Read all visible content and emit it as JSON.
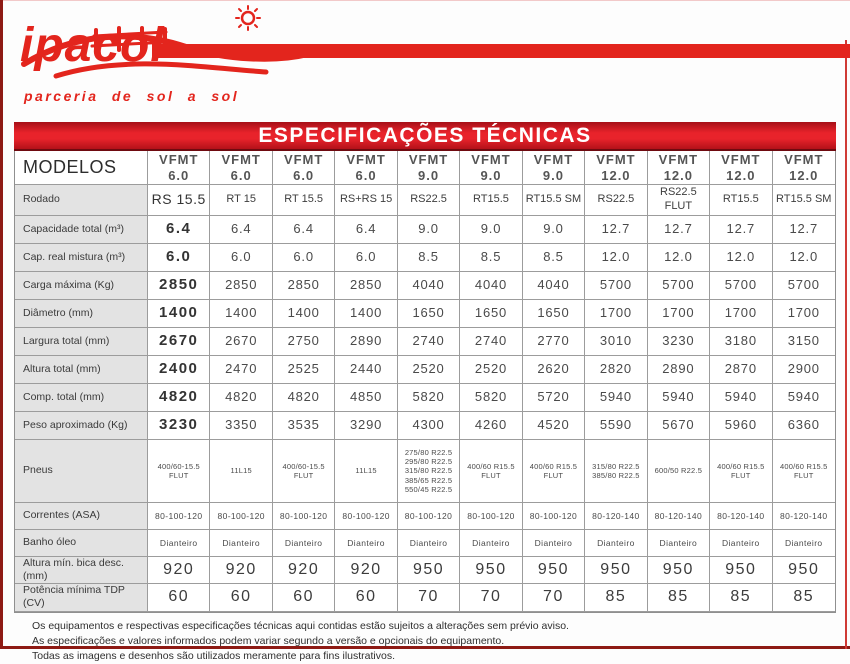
{
  "brand": {
    "name": "ipacol",
    "tagline": "parceria de sol a sol",
    "color": "#e3251d",
    "logo_icon": "hills-fence-sun-icon"
  },
  "title": "ESPECIFICAÇÕES TÉCNICAS",
  "table": {
    "corner_label": "MODELOS",
    "columns": [
      {
        "family": "VFMT",
        "model": "6.0"
      },
      {
        "family": "VFMT",
        "model": "6.0"
      },
      {
        "family": "VFMT",
        "model": "6.0"
      },
      {
        "family": "VFMT",
        "model": "6.0"
      },
      {
        "family": "VFMT",
        "model": "9.0"
      },
      {
        "family": "VFMT",
        "model": "9.0"
      },
      {
        "family": "VFMT",
        "model": "9.0"
      },
      {
        "family": "VFMT",
        "model": "12.0"
      },
      {
        "family": "VFMT",
        "model": "12.0"
      },
      {
        "family": "VFMT",
        "model": "12.0"
      },
      {
        "family": "VFMT",
        "model": "12.0"
      }
    ],
    "rows": [
      {
        "label": "Rodado",
        "values": [
          "RS 15.5",
          "RT 15",
          "RT 15.5",
          "RS+RS 15",
          "RS22.5",
          "RT15.5",
          "RT15.5 SM",
          "RS22.5",
          "RS22.5 FLUT",
          "RT15.5",
          "RT15.5 SM"
        ]
      },
      {
        "label": "Capacidade total (m³)",
        "values": [
          "6.4",
          "6.4",
          "6.4",
          "6.4",
          "9.0",
          "9.0",
          "9.0",
          "12.7",
          "12.7",
          "12.7",
          "12.7"
        ]
      },
      {
        "label": "Cap. real mistura (m³)",
        "values": [
          "6.0",
          "6.0",
          "6.0",
          "6.0",
          "8.5",
          "8.5",
          "8.5",
          "12.0",
          "12.0",
          "12.0",
          "12.0"
        ]
      },
      {
        "label": "Carga máxima (Kg)",
        "values": [
          "2850",
          "2850",
          "2850",
          "2850",
          "4040",
          "4040",
          "4040",
          "5700",
          "5700",
          "5700",
          "5700"
        ]
      },
      {
        "label": "Diâmetro (mm)",
        "values": [
          "1400",
          "1400",
          "1400",
          "1400",
          "1650",
          "1650",
          "1650",
          "1700",
          "1700",
          "1700",
          "1700"
        ]
      },
      {
        "label": "Largura total (mm)",
        "values": [
          "2670",
          "2670",
          "2750",
          "2890",
          "2740",
          "2740",
          "2770",
          "3010",
          "3230",
          "3180",
          "3150"
        ]
      },
      {
        "label": "Altura total (mm)",
        "values": [
          "2400",
          "2470",
          "2525",
          "2440",
          "2520",
          "2520",
          "2620",
          "2820",
          "2890",
          "2870",
          "2900"
        ]
      },
      {
        "label": "Comp. total (mm)",
        "values": [
          "4820",
          "4820",
          "4820",
          "4850",
          "5820",
          "5820",
          "5720",
          "5940",
          "5940",
          "5940",
          "5940"
        ]
      },
      {
        "label": "Peso aproximado (Kg)",
        "values": [
          "3230",
          "3350",
          "3535",
          "3290",
          "4300",
          "4260",
          "4520",
          "5590",
          "5670",
          "5960",
          "6360"
        ]
      },
      {
        "label": "Pneus",
        "values": [
          "400/60-15.5\nFLUT",
          "11L15",
          "400/60-15.5\nFLUT",
          "11L15",
          "275/80 R22.5\n295/80 R22.5\n315/80 R22.5\n385/65 R22.5\n550/45 R22.5",
          "400/60 R15.5\nFLUT",
          "400/60 R15.5\nFLUT",
          "315/80 R22.5\n385/80 R22.5",
          "600/50 R22.5",
          "400/60 R15.5\nFLUT",
          "400/60 R15.5\nFLUT"
        ]
      },
      {
        "label": "Correntes (ASA)",
        "values": [
          "80-100-120",
          "80-100-120",
          "80-100-120",
          "80-100-120",
          "80-100-120",
          "80-100-120",
          "80-100-120",
          "80-120-140",
          "80-120-140",
          "80-120-140",
          "80-120-140"
        ]
      },
      {
        "label": "Banho óleo",
        "values": [
          "Dianteiro",
          "Dianteiro",
          "Dianteiro",
          "Dianteiro",
          "Dianteiro",
          "Dianteiro",
          "Dianteiro",
          "Dianteiro",
          "Dianteiro",
          "Dianteiro",
          "Dianteiro"
        ]
      },
      {
        "label": "Altura mín. bica desc. (mm)",
        "values": [
          "920",
          "920",
          "920",
          "920",
          "950",
          "950",
          "950",
          "950",
          "950",
          "950",
          "950"
        ]
      },
      {
        "label": "Potência mínima TDP (CV)",
        "values": [
          "60",
          "60",
          "60",
          "60",
          "70",
          "70",
          "70",
          "85",
          "85",
          "85",
          "85"
        ]
      }
    ]
  },
  "footer": {
    "lines": [
      "Os equipamentos e respectivas especificações técnicas aqui contidas estão sujeitos a alterações sem prévio aviso.",
      "As especificações e valores informados podem variar segundo a versão e opcionais do equipamento.",
      "Todas as imagens e desenhos são utilizados meramente para fins ilustrativos."
    ]
  }
}
